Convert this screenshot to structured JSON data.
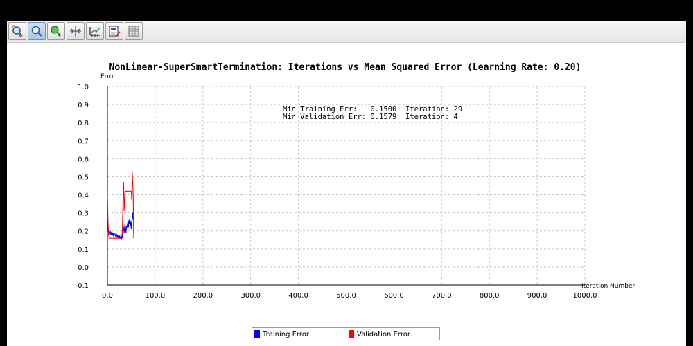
{
  "toolbar": {
    "buttons": [
      {
        "name": "zoom-reset-icon"
      },
      {
        "name": "zoom-in-icon"
      },
      {
        "name": "pan-icon"
      },
      {
        "name": "crosshair-icon"
      },
      {
        "name": "axis-settings-icon"
      },
      {
        "name": "export-icon"
      },
      {
        "name": "table-icon"
      }
    ]
  },
  "annotation": {
    "line1": "Min Training Err:   0.1500  Iteration: 29",
    "line2": "Min Validation Err: 0.1579  Iteration: 4"
  },
  "legend": {
    "items": [
      {
        "label": "Training Error",
        "color": "#0000ff"
      },
      {
        "label": "Validation Error",
        "color": "#ff0000"
      }
    ]
  },
  "chart_data": {
    "type": "line",
    "title": "NonLinear-SuperSmartTermination: Iterations vs Mean Squared Error (Learning Rate: 0.20)",
    "xlabel": "Iteration Number",
    "ylabel": "Error",
    "xlim": [
      0,
      1000
    ],
    "ylim": [
      -0.1,
      1.0
    ],
    "xticks": [
      0,
      100,
      200,
      300,
      400,
      500,
      600,
      700,
      800,
      900,
      1000
    ],
    "xtick_labels": [
      "0.0",
      "100.0",
      "200.0",
      "300.0",
      "400.0",
      "500.0",
      "600.0",
      "700.0",
      "800.0",
      "900.0",
      "1000.0"
    ],
    "yticks": [
      -0.1,
      0.0,
      0.1,
      0.2,
      0.3,
      0.4,
      0.5,
      0.6,
      0.7,
      0.8,
      0.9,
      1.0
    ],
    "ytick_labels": [
      "-0.1",
      "0.0",
      "0.1",
      "0.2",
      "0.3",
      "0.4",
      "0.5",
      "0.6",
      "0.7",
      "0.8",
      "0.9",
      "1.0"
    ],
    "grid": true,
    "series": [
      {
        "name": "Training Error",
        "color": "#0000ff",
        "x": [
          0,
          1,
          2,
          3,
          4,
          5,
          6,
          7,
          8,
          9,
          10,
          11,
          12,
          13,
          14,
          15,
          16,
          17,
          18,
          19,
          20,
          21,
          22,
          23,
          24,
          25,
          26,
          27,
          28,
          29,
          30,
          31,
          32,
          33,
          34,
          35,
          36,
          37,
          38,
          39,
          40,
          41,
          42,
          43,
          44,
          45,
          46,
          47,
          48,
          49,
          50,
          51,
          52,
          53,
          54,
          55
        ],
        "y": [
          0.36,
          0.25,
          0.2,
          0.19,
          0.18,
          0.19,
          0.2,
          0.18,
          0.19,
          0.18,
          0.19,
          0.18,
          0.19,
          0.17,
          0.19,
          0.18,
          0.18,
          0.17,
          0.19,
          0.18,
          0.17,
          0.18,
          0.16,
          0.17,
          0.18,
          0.16,
          0.17,
          0.16,
          0.16,
          0.15,
          0.17,
          0.16,
          0.2,
          0.23,
          0.21,
          0.19,
          0.22,
          0.24,
          0.21,
          0.19,
          0.23,
          0.22,
          0.24,
          0.25,
          0.22,
          0.26,
          0.24,
          0.27,
          0.23,
          0.25,
          0.21,
          0.25,
          0.27,
          0.3,
          0.26,
          0.31
        ]
      },
      {
        "name": "Validation Error",
        "color": "#ff0000",
        "x": [
          0,
          1,
          2,
          3,
          4,
          5,
          10,
          15,
          20,
          25,
          28,
          30,
          31,
          32,
          33,
          34,
          35,
          36,
          37,
          38,
          39,
          40,
          42,
          45,
          48,
          50,
          51,
          52,
          53,
          54,
          55,
          56
        ],
        "y": [
          0.41,
          0.27,
          0.19,
          0.17,
          0.16,
          0.16,
          0.16,
          0.16,
          0.16,
          0.16,
          0.16,
          0.17,
          0.19,
          0.28,
          0.41,
          0.47,
          0.31,
          0.36,
          0.42,
          0.42,
          0.42,
          0.42,
          0.42,
          0.42,
          0.42,
          0.42,
          0.37,
          0.53,
          0.46,
          0.4,
          0.16,
          0.2
        ]
      }
    ]
  }
}
